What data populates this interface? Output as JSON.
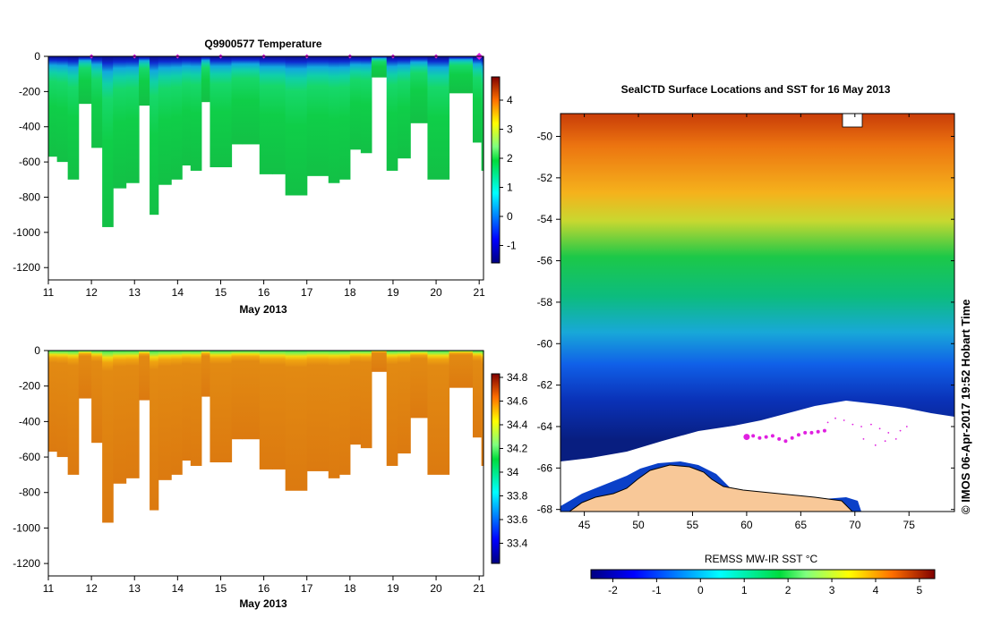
{
  "chart_data": [
    {
      "type": "heatmap",
      "title": "Q9900577  Temperature",
      "xlabel": "May 2013",
      "ylabel": "",
      "x_ticks": [
        "11",
        "12",
        "13",
        "14",
        "15",
        "16",
        "17",
        "18",
        "19",
        "20",
        "21"
      ],
      "xlim": [
        11,
        21.1
      ],
      "y_ticks": [
        "0",
        "-200",
        "-400",
        "-600",
        "-800",
        "-1000",
        "-1200"
      ],
      "ylim": [
        -1270,
        0
      ],
      "colorbar_ticks": [
        "4",
        "3",
        "2",
        "1",
        "0",
        "-1"
      ],
      "colorbar_range": [
        -1.6,
        4.8
      ],
      "profile_markers": [
        12,
        13,
        14,
        15,
        16,
        17,
        18,
        19,
        20,
        21
      ],
      "profiles": [
        {
          "start": 11.0,
          "end": 11.2,
          "max_depth": -570,
          "surface": -1.2,
          "deep": 1.5
        },
        {
          "start": 11.2,
          "end": 11.45,
          "max_depth": -600,
          "surface": -1.2,
          "deep": 1.5
        },
        {
          "start": 11.45,
          "end": 11.7,
          "max_depth": -700,
          "surface": -1.2,
          "deep": 1.4
        },
        {
          "start": 11.7,
          "end": 12.0,
          "max_depth": -270,
          "surface": -1.2,
          "deep": 1.5
        },
        {
          "start": 12.0,
          "end": 12.25,
          "max_depth": -520,
          "surface": -1.2,
          "deep": 1.4
        },
        {
          "start": 12.25,
          "end": 12.5,
          "max_depth": -970,
          "surface": -1.1,
          "deep": 1.3
        },
        {
          "start": 12.5,
          "end": 12.8,
          "max_depth": -750,
          "surface": -1.2,
          "deep": 1.4
        },
        {
          "start": 12.8,
          "end": 13.1,
          "max_depth": -720,
          "surface": -1.2,
          "deep": 1.4
        },
        {
          "start": 13.1,
          "end": 13.35,
          "max_depth": -280,
          "surface": -1.2,
          "deep": 1.5
        },
        {
          "start": 13.35,
          "end": 13.55,
          "max_depth": -900,
          "surface": -1.2,
          "deep": 1.3
        },
        {
          "start": 13.55,
          "end": 13.85,
          "max_depth": -730,
          "surface": -1.2,
          "deep": 1.4
        },
        {
          "start": 13.85,
          "end": 14.1,
          "max_depth": -700,
          "surface": -1.2,
          "deep": 1.4
        },
        {
          "start": 14.1,
          "end": 14.3,
          "max_depth": -620,
          "surface": -1.2,
          "deep": 1.4
        },
        {
          "start": 14.3,
          "end": 14.55,
          "max_depth": -650,
          "surface": -1.2,
          "deep": 1.5
        },
        {
          "start": 14.55,
          "end": 14.75,
          "max_depth": -260,
          "surface": -1.2,
          "deep": 1.5
        },
        {
          "start": 14.75,
          "end": 15.25,
          "max_depth": -630,
          "surface": -1.2,
          "deep": 1.4
        },
        {
          "start": 15.25,
          "end": 15.5,
          "max_depth": -500,
          "surface": -1.2,
          "deep": 1.5
        },
        {
          "start": 15.5,
          "end": 15.9,
          "max_depth": -500,
          "surface": -1.2,
          "deep": 1.5
        },
        {
          "start": 15.9,
          "end": 16.2,
          "max_depth": -670,
          "surface": -1.2,
          "deep": 1.3
        },
        {
          "start": 16.2,
          "end": 16.5,
          "max_depth": -670,
          "surface": -1.2,
          "deep": 1.4
        },
        {
          "start": 16.5,
          "end": 17.0,
          "max_depth": -790,
          "surface": -1.2,
          "deep": 1.3
        },
        {
          "start": 17.0,
          "end": 17.5,
          "max_depth": -680,
          "surface": -1.2,
          "deep": 1.3
        },
        {
          "start": 17.5,
          "end": 17.75,
          "max_depth": -720,
          "surface": -1.2,
          "deep": 1.3
        },
        {
          "start": 17.75,
          "end": 18.0,
          "max_depth": -700,
          "surface": -1.2,
          "deep": 1.4
        },
        {
          "start": 18.0,
          "end": 18.25,
          "max_depth": -530,
          "surface": -1.2,
          "deep": 1.4
        },
        {
          "start": 18.25,
          "end": 18.5,
          "max_depth": -550,
          "surface": -1.2,
          "deep": 1.5
        },
        {
          "start": 18.5,
          "end": 18.85,
          "max_depth": -120,
          "surface": -1.2,
          "deep": 1.6
        },
        {
          "start": 18.85,
          "end": 19.1,
          "max_depth": -650,
          "surface": -1.2,
          "deep": 1.4
        },
        {
          "start": 19.1,
          "end": 19.4,
          "max_depth": -580,
          "surface": -1.2,
          "deep": 1.5
        },
        {
          "start": 19.4,
          "end": 19.8,
          "max_depth": -380,
          "surface": -1.2,
          "deep": 1.5
        },
        {
          "start": 19.8,
          "end": 20.3,
          "max_depth": -700,
          "surface": -1.2,
          "deep": 1.4
        },
        {
          "start": 20.3,
          "end": 20.85,
          "max_depth": -210,
          "surface": -1.2,
          "deep": 1.6
        },
        {
          "start": 20.85,
          "end": 21.05,
          "max_depth": -490,
          "surface": -1.2,
          "deep": 1.4
        },
        {
          "start": 21.05,
          "end": 21.1,
          "max_depth": -650,
          "surface": -1.2,
          "deep": 1.4
        }
      ]
    },
    {
      "type": "heatmap",
      "title": "",
      "xlabel": "May 2013",
      "ylabel": "",
      "x_ticks": [
        "11",
        "12",
        "13",
        "14",
        "15",
        "16",
        "17",
        "18",
        "19",
        "20",
        "21"
      ],
      "xlim": [
        11,
        21.1
      ],
      "y_ticks": [
        "0",
        "-200",
        "-400",
        "-600",
        "-800",
        "-1000",
        "-1200"
      ],
      "ylim": [
        -1270,
        0
      ],
      "colorbar_ticks": [
        "34.8",
        "34.6",
        "34.4",
        "34.2",
        "34",
        "33.8",
        "33.6",
        "33.4"
      ],
      "colorbar_range": [
        33.23,
        34.83
      ],
      "surface_value": 34.0,
      "deep_value": 34.6
    },
    {
      "type": "heatmap",
      "title": "SealCTD Surface Locations and SST for 16 May 2013",
      "xlabel": "",
      "ylabel": "",
      "x_ticks": [
        "45",
        "50",
        "55",
        "60",
        "65",
        "70",
        "75"
      ],
      "xlim": [
        42.8,
        79.2
      ],
      "y_ticks": [
        "-50",
        "-52",
        "-54",
        "-56",
        "-58",
        "-60",
        "-62",
        "-64",
        "-66",
        "-68"
      ],
      "ylim": [
        -68.1,
        -48.9
      ],
      "colorbar_label": "REMSS MW-IR SST °C",
      "colorbar_ticks": [
        "-2",
        "-1",
        "0",
        "1",
        "2",
        "3",
        "4",
        "5"
      ],
      "colorbar_range": [
        -2.5,
        5.35
      ],
      "seal_track": [
        {
          "lon": 60.0,
          "lat": -64.5
        },
        {
          "lon": 60.6,
          "lat": -64.45
        },
        {
          "lon": 61.2,
          "lat": -64.55
        },
        {
          "lon": 61.8,
          "lat": -64.5
        },
        {
          "lon": 62.4,
          "lat": -64.45
        },
        {
          "lon": 63.0,
          "lat": -64.6
        },
        {
          "lon": 63.6,
          "lat": -64.7
        },
        {
          "lon": 64.2,
          "lat": -64.55
        },
        {
          "lon": 64.8,
          "lat": -64.4
        },
        {
          "lon": 65.4,
          "lat": -64.3
        },
        {
          "lon": 66.0,
          "lat": -64.3
        },
        {
          "lon": 66.6,
          "lat": -64.25
        },
        {
          "lon": 67.2,
          "lat": -64.2
        }
      ],
      "credit": "© IMOS 06-Apr-2017 19:52 Hobart Time"
    }
  ]
}
